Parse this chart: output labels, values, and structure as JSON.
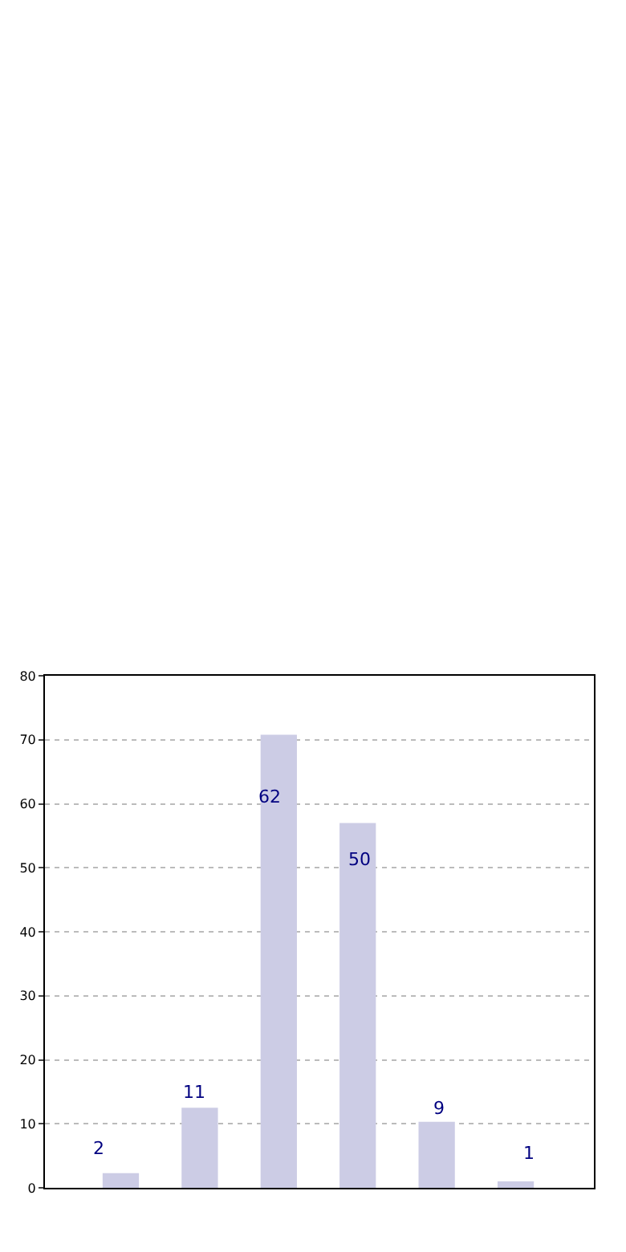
{
  "chart_data": {
    "type": "bar",
    "categories": [
      null,
      null,
      null,
      null,
      null,
      null
    ],
    "values": [
      2.3,
      12.5,
      70.8,
      57,
      10.3,
      1.0
    ],
    "annotations": [
      "2",
      "11",
      "62",
      "50",
      "9",
      "1"
    ],
    "color": "#cccce5",
    "ylim": [
      0,
      80
    ],
    "yticks": [
      0,
      10,
      20,
      30,
      40,
      50,
      60,
      70,
      80
    ],
    "grid": "y"
  }
}
